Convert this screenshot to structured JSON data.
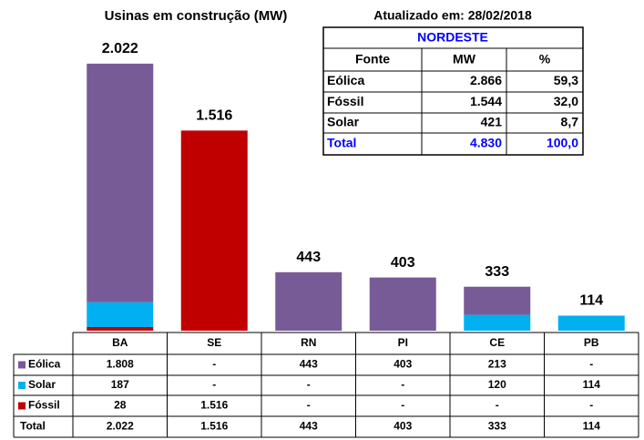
{
  "chart_data": {
    "type": "bar",
    "stacked": true,
    "title": "Usinas em construção (MW)",
    "categories": [
      "BA",
      "SE",
      "RN",
      "PI",
      "CE",
      "PB"
    ],
    "series": [
      {
        "name": "Eólica",
        "color": "#775b97",
        "values": [
          1808,
          0,
          443,
          403,
          213,
          0
        ],
        "value_labels": [
          "1.808",
          "-",
          "443",
          "403",
          "213",
          "-"
        ]
      },
      {
        "name": "Solar",
        "color": "#00b0f0",
        "values": [
          187,
          0,
          0,
          0,
          120,
          114
        ],
        "value_labels": [
          "187",
          "-",
          "-",
          "-",
          "120",
          "114"
        ]
      },
      {
        "name": "Fóssil",
        "color": "#c00000",
        "values": [
          28,
          1516,
          0,
          0,
          0,
          0
        ],
        "value_labels": [
          "28",
          "1.516",
          "-",
          "-",
          "-",
          "-"
        ]
      }
    ],
    "total": {
      "name": "Total",
      "values": [
        2022,
        1516,
        443,
        403,
        333,
        114
      ],
      "value_labels": [
        "2.022",
        "1.516",
        "443",
        "403",
        "333",
        "114"
      ]
    },
    "summary_table": {
      "title": "Atualizado em: 28/02/2018",
      "region": "NORDESTE",
      "header": [
        "Fonte",
        "MW",
        "%"
      ],
      "rows": [
        [
          "Eólica",
          "2.866",
          "59,3"
        ],
        [
          "Fóssil",
          "1.544",
          "32,0"
        ],
        [
          "Solar",
          "421",
          "8,7"
        ]
      ],
      "total": [
        "Total",
        "4.830",
        "100,0"
      ]
    }
  }
}
